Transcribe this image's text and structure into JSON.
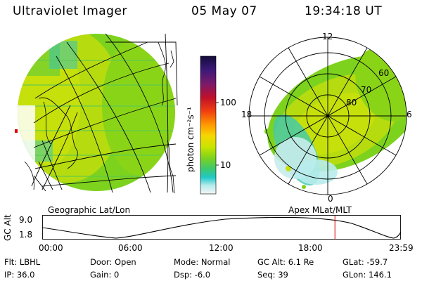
{
  "header": {
    "instrument": "Ultraviolet Imager",
    "date": "05 May 07",
    "time": "19:34:18 UT"
  },
  "left_panel": {
    "caption": "Geographic Lat/Lon"
  },
  "right_panel": {
    "caption": "Apex MLat/MLT",
    "mlt_labels": {
      "top": "12",
      "left": "18",
      "right": "6",
      "bottom": "0"
    },
    "lat_labels": [
      "60",
      "70",
      "80"
    ]
  },
  "colorbar": {
    "unit_label": "photon cm⁻²s⁻¹",
    "ticks": [
      "100",
      "10"
    ],
    "colors": [
      "#1a0f45",
      "#3c1a7a",
      "#7a1a6a",
      "#c0102a",
      "#f04010",
      "#ff9b00",
      "#f5d800",
      "#c8e400",
      "#8cd40a",
      "#55c83a",
      "#20c8c8",
      "#b8ecec",
      "#f4f4f4"
    ]
  },
  "altitude_plot": {
    "ylabel": "GC Alt",
    "y_ticks": [
      "9.0",
      "1.8"
    ],
    "x_ticks": [
      "00:00",
      "06:00",
      "12:00",
      "18:00",
      "23:59"
    ],
    "current_time_fraction": 0.816
  },
  "info": {
    "row1": [
      {
        "label": "Flt:",
        "value": "LBHL"
      },
      {
        "label": "Door:",
        "value": "Open"
      },
      {
        "label": "Mode:",
        "value": "Normal"
      },
      {
        "label": "GC Alt:",
        "value": "6.1 Re"
      },
      {
        "label": "GLat:",
        "value": "-59.7"
      }
    ],
    "row2": [
      {
        "label": "IP:",
        "value": "36.0"
      },
      {
        "label": "Gain:",
        "value": "0"
      },
      {
        "label": "Dsp:",
        "value": "-6.0"
      },
      {
        "label": "Seq:",
        "value": "39"
      },
      {
        "label": "GLon:",
        "value": "146.1"
      }
    ]
  }
}
